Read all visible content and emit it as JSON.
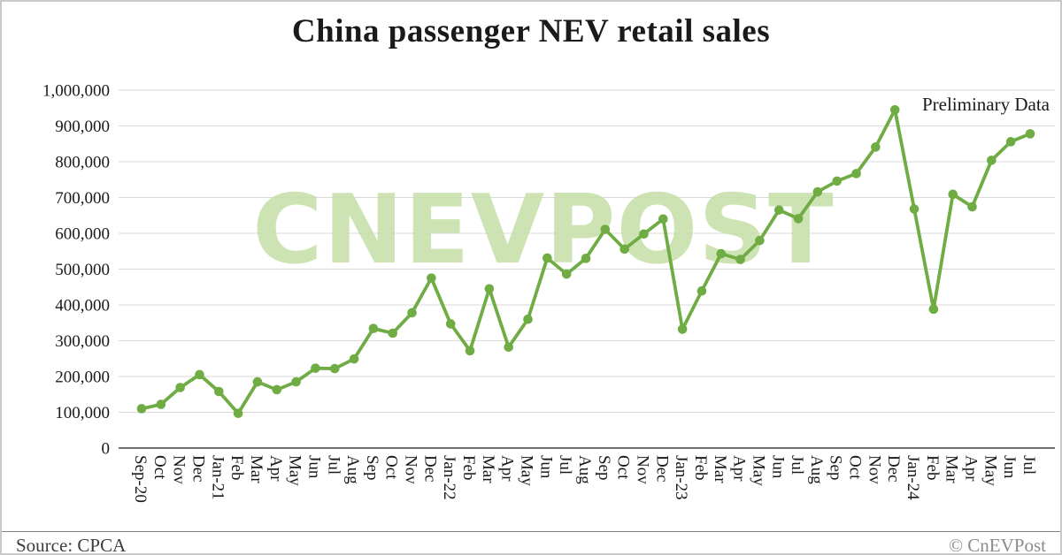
{
  "title": "China passenger NEV retail sales",
  "watermark": "CNEVPOST",
  "annotations": {
    "preliminary": "Preliminary Data"
  },
  "footer": {
    "source": "Source: CPCA",
    "copyright": "© CnEVPost"
  },
  "colors": {
    "line": "#6fad44",
    "marker": "#6fad44",
    "grid": "#d9d9d9",
    "axis": "#404040",
    "watermark": "#c6dfa8",
    "tick_text": "#1a1a1a"
  },
  "chart_data": {
    "type": "line",
    "title": "China passenger NEV retail sales",
    "xlabel": "",
    "ylabel": "",
    "grid": true,
    "legend_position": "none",
    "annotation": "Preliminary Data",
    "ylim": [
      0,
      1000000
    ],
    "ytick_interval": 100000,
    "ytick_labels": [
      "0",
      "100,000",
      "200,000",
      "300,000",
      "400,000",
      "500,000",
      "600,000",
      "700,000",
      "800,000",
      "900,000",
      "1,000,000"
    ],
    "categories": [
      "Sep-20",
      "Oct",
      "Nov",
      "Dec",
      "Jan-21",
      "Feb",
      "Mar",
      "Apr",
      "May",
      "Jun",
      "Jul",
      "Aug",
      "Sep",
      "Oct",
      "Nov",
      "Dec",
      "Jan-22",
      "Feb",
      "Mar",
      "Apr",
      "May",
      "Jun",
      "Jul",
      "Aug",
      "Sep",
      "Oct",
      "Nov",
      "Dec",
      "Jan-23",
      "Feb",
      "Mar",
      "Apr",
      "May",
      "Jun",
      "Jul",
      "Aug",
      "Sep",
      "Oct",
      "Nov",
      "Dec",
      "Jan-24",
      "Feb",
      "Mar",
      "Apr",
      "May",
      "Jun",
      "Jul"
    ],
    "series": [
      {
        "name": "China passenger NEV retail sales",
        "values": [
          110000,
          122000,
          169000,
          205000,
          158000,
          97000,
          185000,
          163000,
          185000,
          223000,
          222000,
          249000,
          334000,
          321000,
          378000,
          475000,
          347000,
          272000,
          445000,
          282000,
          360000,
          531000,
          486000,
          530000,
          611000,
          556000,
          598000,
          640000,
          332000,
          439000,
          543000,
          527000,
          580000,
          665000,
          641000,
          716000,
          746000,
          767000,
          841000,
          945000,
          668000,
          388000,
          709000,
          674000,
          804000,
          856000,
          878000
        ]
      }
    ]
  }
}
